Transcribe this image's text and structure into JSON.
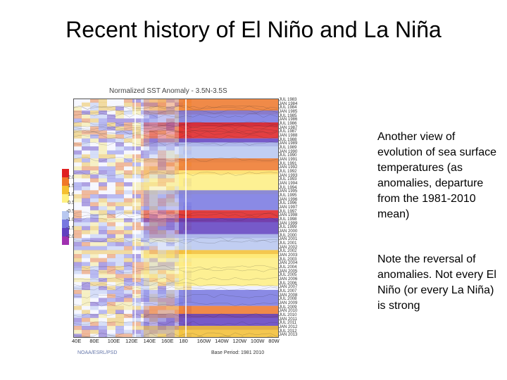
{
  "slide": {
    "title": "Recent history of El Niño and La Niña",
    "paragraph1": "Another view of evolution of sea surface temperatures (as anomalies, departure from the 1981-2010 mean)",
    "paragraph2": "Note the reversal of anomalies. Not every El Niño (or every La Niña) is strong"
  },
  "figure": {
    "title": "Normalized SST Anomaly - 3.5N-3.5S",
    "colorbar_labels": [
      "2.0",
      "1.5",
      "1.0",
      "0.5",
      "-0.5",
      "-1.0",
      "-1.5",
      "-2.0"
    ],
    "colorbar_colors": [
      "#e02020",
      "#f07828",
      "#f5c030",
      "#fff080",
      "#ffffff",
      "#b8c8f0",
      "#7878e0",
      "#6040c0",
      "#a030b0"
    ],
    "longitude_labels": [
      "40E",
      "80E",
      "100E",
      "120E",
      "140E",
      "160E",
      "180",
      "160W",
      "140W",
      "120W",
      "100W",
      "80W"
    ],
    "time_labels": [
      "JUL 1983",
      "JAN 1984",
      "JUL 1984",
      "JAN 1985",
      "JUL 1985",
      "JAN 1986",
      "JUL 1986",
      "JAN 1987",
      "JUL 1987",
      "JAN 1988",
      "JUL 1988",
      "JAN 1989",
      "JUL 1989",
      "JAN 1990",
      "JUL 1990",
      "JAN 1991",
      "JUL 1991",
      "JAN 1992",
      "JUL 1992",
      "JAN 1993",
      "JUL 1993",
      "JAN 1994",
      "JUL 1994",
      "JAN 1995",
      "JUL 1995",
      "JAN 1996",
      "JUL 1996",
      "JAN 1997",
      "JUL 1997",
      "JAN 1998",
      "JUL 1998",
      "JAN 1999",
      "JUL 1999",
      "JAN 2000",
      "JUL 2000",
      "JAN 2001",
      "JUL 2001",
      "JAN 2002",
      "JUL 2002",
      "JAN 2003",
      "JUL 2003",
      "JAN 2004",
      "JUL 2004",
      "JAN 2005",
      "JUL 2005",
      "JAN 2006",
      "JUL 2006",
      "JAN 2007",
      "JUL 2007",
      "JAN 2008",
      "JUL 2008",
      "JAN 2009",
      "JUL 2009",
      "JAN 2010",
      "JUL 2010",
      "JAN 2011",
      "JUL 2011",
      "JAN 2012",
      "JUL 2012",
      "JAN 2013"
    ],
    "credit": "NOAA/ESRL/PSD",
    "base_period": "Base Period: 1981 2010",
    "anomaly_bands": [
      {
        "from": "JUL 1983",
        "to": "JAN 1985",
        "color": "#f07828"
      },
      {
        "from": "JAN 1985",
        "to": "JUL 1986",
        "color": "#7878e0"
      },
      {
        "from": "JUL 1986",
        "to": "JAN 1988",
        "color": "#e02020"
      },
      {
        "from": "JUL 1988",
        "to": "JAN 1989",
        "color": "#6040c0"
      },
      {
        "from": "JAN 1989",
        "to": "JAN 1991",
        "color": "#b8c8f0"
      },
      {
        "from": "JAN 1991",
        "to": "JUL 1992",
        "color": "#f07828"
      },
      {
        "from": "JUL 1992",
        "to": "JAN 1995",
        "color": "#fff080"
      },
      {
        "from": "JAN 1995",
        "to": "JAN 1997",
        "color": "#7878e0"
      },
      {
        "from": "JUL 1997",
        "to": "JUL 1998",
        "color": "#e02020"
      },
      {
        "from": "JUL 1998",
        "to": "JUL 2000",
        "color": "#6040c0"
      },
      {
        "from": "JUL 2000",
        "to": "JAN 2002",
        "color": "#b8c8f0"
      },
      {
        "from": "JUL 2002",
        "to": "JAN 2003",
        "color": "#f5c030"
      },
      {
        "from": "JAN 2003",
        "to": "JUL 2006",
        "color": "#fff080"
      },
      {
        "from": "JUL 2007",
        "to": "JAN 2009",
        "color": "#7878e0"
      },
      {
        "from": "JUL 2009",
        "to": "JUL 2010",
        "color": "#f07828"
      },
      {
        "from": "JUL 2010",
        "to": "JAN 2012",
        "color": "#6040c0"
      },
      {
        "from": "JAN 2012",
        "to": "JAN 2013",
        "color": "#f5c030"
      }
    ]
  }
}
